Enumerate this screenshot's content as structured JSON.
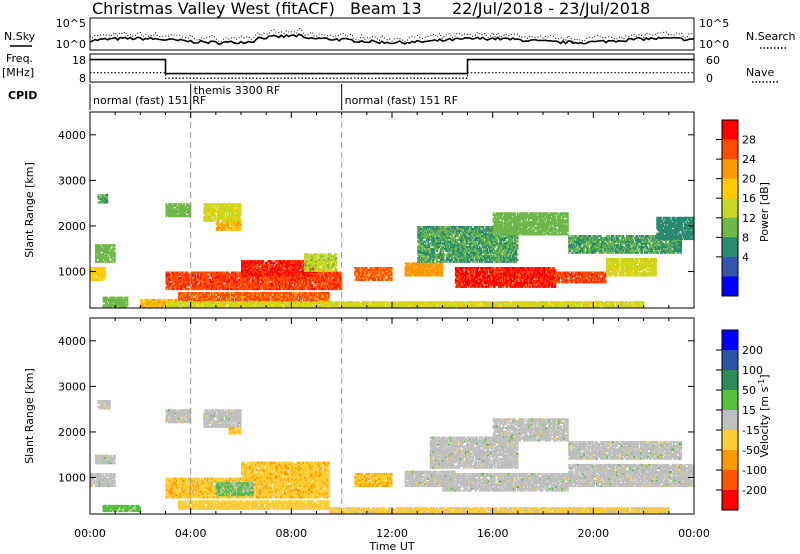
{
  "header": {
    "radar": "Christmas Valley West (fitACF)",
    "beam": "Beam 13",
    "date_range": "22/Jul/2018 - 23/Jul/2018"
  },
  "side_labels": {
    "nsky": "N.Sky",
    "nsearch": "N.Search",
    "freq_1": "Freq.",
    "freq_2": "[MHz]",
    "nave": "Nave",
    "cpid": "CPID"
  },
  "noise_panel": {
    "left_ticks": [
      "10^5",
      "10^0"
    ],
    "right_ticks": [
      "10^5",
      "10^0"
    ]
  },
  "freq_panel": {
    "left_ticks": [
      "18",
      "8"
    ],
    "right_ticks": [
      "60",
      "0"
    ],
    "freq_steps": [
      {
        "t0": 0,
        "t1": 3,
        "v": 16
      },
      {
        "t0": 3,
        "t1": 15,
        "v": 11
      },
      {
        "t0": 15,
        "t1": 24,
        "v": 16
      }
    ],
    "nave_steps": [
      {
        "t0": 0,
        "t1": 3,
        "v": 20
      },
      {
        "t0": 3,
        "t1": 15,
        "v": 8
      },
      {
        "t0": 15,
        "t1": 24,
        "v": 20
      }
    ]
  },
  "cpid_modes": [
    {
      "label": "normal (fast) 151 RF",
      "start": 0
    },
    {
      "label": "themis 3300 RF",
      "start": 4
    },
    {
      "label": "normal (fast) 151 RF",
      "start": 10
    }
  ],
  "axes": {
    "ylabel": "Slant Range [km]",
    "xlabel": "Time UT",
    "yticks": [
      "4000",
      "3000",
      "2000",
      "1000"
    ],
    "xticks": [
      "00:00",
      "04:00",
      "08:00",
      "12:00",
      "16:00",
      "20:00",
      "00:00"
    ]
  },
  "power_colorbar": {
    "label": "Power [dB]",
    "ticks": [
      "28",
      "24",
      "20",
      "16",
      "12",
      "8",
      "4"
    ],
    "colors": [
      "#ff0000",
      "#ff4a00",
      "#ff9900",
      "#ffcc00",
      "#c8d820",
      "#6fb84a",
      "#2a8a70",
      "#3355aa",
      "#0000ff"
    ]
  },
  "velocity_colorbar": {
    "label": "Velocity [m s",
    "label_sup": "-1",
    "label_end": "]",
    "ticks": [
      "200",
      "100",
      "50",
      "15",
      "-15",
      "-50",
      "-100",
      "-200"
    ],
    "colors": [
      "#0000ff",
      "#2a55a8",
      "#2f8a5a",
      "#55c03a",
      "#bfbfbf",
      "#ffcc33",
      "#ff9900",
      "#ff5500",
      "#ff0000"
    ]
  },
  "chart_data": [
    {
      "type": "heatmap",
      "title": "Power",
      "xlabel": "Time UT",
      "ylabel": "Slant Range [km]",
      "xlim": [
        0,
        24
      ],
      "ylim": [
        200,
        4500
      ],
      "cbar_range": [
        0,
        30
      ],
      "regions": [
        {
          "t0": 0.0,
          "t1": 0.6,
          "r0": 800,
          "r1": 1100,
          "v": 18
        },
        {
          "t0": 0.2,
          "t1": 1.0,
          "r0": 1200,
          "r1": 1600,
          "v": 12
        },
        {
          "t0": 0.3,
          "t1": 0.7,
          "r0": 2500,
          "r1": 2700,
          "v": 10
        },
        {
          "t0": 0.5,
          "t1": 1.5,
          "r0": 200,
          "r1": 450,
          "v": 12
        },
        {
          "t0": 2.0,
          "t1": 3.5,
          "r0": 200,
          "r1": 400,
          "v": 20
        },
        {
          "t0": 3.0,
          "t1": 4.0,
          "r0": 2200,
          "r1": 2500,
          "v": 12
        },
        {
          "t0": 4.5,
          "t1": 6.0,
          "r0": 2100,
          "r1": 2500,
          "v": 16
        },
        {
          "t0": 5.0,
          "t1": 6.0,
          "r0": 1900,
          "r1": 2100,
          "v": 20
        },
        {
          "t0": 3.0,
          "t1": 10.0,
          "r0": 600,
          "r1": 1000,
          "v": 26
        },
        {
          "t0": 6.0,
          "t1": 9.0,
          "r0": 900,
          "r1": 1250,
          "v": 27
        },
        {
          "t0": 8.5,
          "t1": 9.8,
          "r0": 1000,
          "r1": 1400,
          "v": 14
        },
        {
          "t0": 3.5,
          "t1": 9.5,
          "r0": 300,
          "r1": 550,
          "v": 24
        },
        {
          "t0": 3.0,
          "t1": 22.0,
          "r0": 200,
          "r1": 350,
          "v": 16
        },
        {
          "t0": 10.5,
          "t1": 12.0,
          "r0": 800,
          "r1": 1100,
          "v": 24
        },
        {
          "t0": 12.5,
          "t1": 14.0,
          "r0": 900,
          "r1": 1200,
          "v": 22
        },
        {
          "t0": 13.0,
          "t1": 17.0,
          "r0": 1200,
          "r1": 2000,
          "v": 10
        },
        {
          "t0": 14.5,
          "t1": 18.5,
          "r0": 650,
          "r1": 1100,
          "v": 27
        },
        {
          "t0": 18.5,
          "t1": 20.5,
          "r0": 750,
          "r1": 1000,
          "v": 26
        },
        {
          "t0": 20.5,
          "t1": 22.5,
          "r0": 900,
          "r1": 1300,
          "v": 16
        },
        {
          "t0": 16.0,
          "t1": 19.0,
          "r0": 1800,
          "r1": 2300,
          "v": 12
        },
        {
          "t0": 19.0,
          "t1": 23.5,
          "r0": 1400,
          "r1": 1800,
          "v": 10
        },
        {
          "t0": 22.5,
          "t1": 24.0,
          "r0": 1700,
          "r1": 2200,
          "v": 8
        }
      ]
    },
    {
      "type": "heatmap",
      "title": "Velocity",
      "xlabel": "Time UT",
      "ylabel": "Slant Range [km]",
      "xlim": [
        0,
        24
      ],
      "ylim": [
        200,
        4500
      ],
      "cbar_range": [
        -200,
        200
      ],
      "regions": [
        {
          "t0": 0.0,
          "t1": 1.0,
          "r0": 800,
          "r1": 1100,
          "v": 0
        },
        {
          "t0": 0.2,
          "t1": 1.0,
          "r0": 1300,
          "r1": 1500,
          "v": 0
        },
        {
          "t0": 0.3,
          "t1": 0.8,
          "r0": 2500,
          "r1": 2700,
          "v": 0
        },
        {
          "t0": 0.5,
          "t1": 2.0,
          "r0": 250,
          "r1": 400,
          "v": 30
        },
        {
          "t0": 3.0,
          "t1": 4.0,
          "r0": 2200,
          "r1": 2500,
          "v": 0
        },
        {
          "t0": 4.5,
          "t1": 6.0,
          "r0": 2100,
          "r1": 2500,
          "v": 0
        },
        {
          "t0": 5.5,
          "t1": 6.0,
          "r0": 1950,
          "r1": 2100,
          "v": -40
        },
        {
          "t0": 3.0,
          "t1": 9.5,
          "r0": 550,
          "r1": 1000,
          "v": -40
        },
        {
          "t0": 6.0,
          "t1": 9.5,
          "r0": 900,
          "r1": 1350,
          "v": -40
        },
        {
          "t0": 5.0,
          "t1": 6.5,
          "r0": 600,
          "r1": 900,
          "v": 20
        },
        {
          "t0": 3.5,
          "t1": 9.5,
          "r0": 300,
          "r1": 500,
          "v": -30
        },
        {
          "t0": 10.5,
          "t1": 12.0,
          "r0": 800,
          "r1": 1100,
          "v": -45
        },
        {
          "t0": 12.5,
          "t1": 14.5,
          "r0": 800,
          "r1": 1150,
          "v": 0
        },
        {
          "t0": 13.5,
          "t1": 17.0,
          "r0": 1200,
          "r1": 1900,
          "v": 0
        },
        {
          "t0": 14.0,
          "t1": 19.0,
          "r0": 700,
          "r1": 1100,
          "v": 0
        },
        {
          "t0": 19.0,
          "t1": 24.0,
          "r0": 800,
          "r1": 1300,
          "v": 0
        },
        {
          "t0": 16.0,
          "t1": 19.0,
          "r0": 1800,
          "r1": 2300,
          "v": 0
        },
        {
          "t0": 19.0,
          "t1": 23.5,
          "r0": 1400,
          "r1": 1800,
          "v": 0
        },
        {
          "t0": 9.5,
          "t1": 23.0,
          "r0": 200,
          "r1": 350,
          "v": -25
        }
      ]
    }
  ]
}
